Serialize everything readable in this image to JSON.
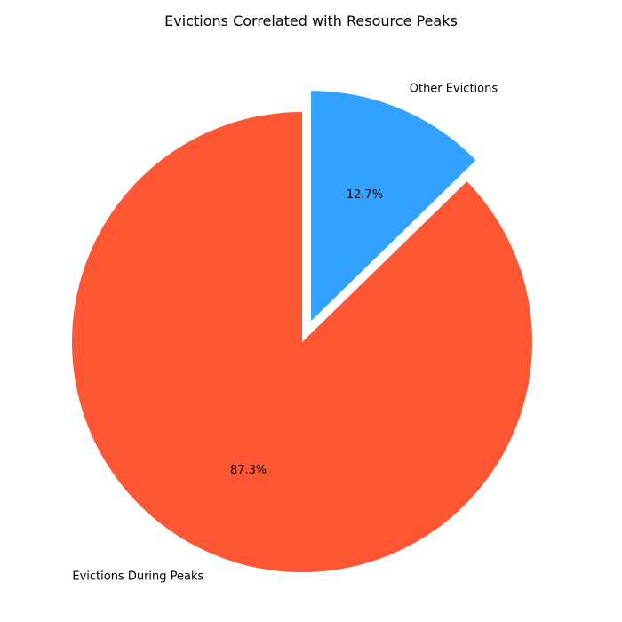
{
  "chart_data": {
    "type": "pie",
    "title": "Evictions Correlated with Resource Peaks",
    "start_angle": "top",
    "direction": "counterclockwise",
    "slices": [
      {
        "label": "Evictions During Peaks",
        "value": 87.3,
        "pct_label": "87.3%",
        "color": "#FF5733",
        "exploded": false
      },
      {
        "label": "Other Evictions",
        "value": 12.7,
        "pct_label": "12.7%",
        "color": "#33A1FF",
        "exploded": true
      }
    ]
  }
}
